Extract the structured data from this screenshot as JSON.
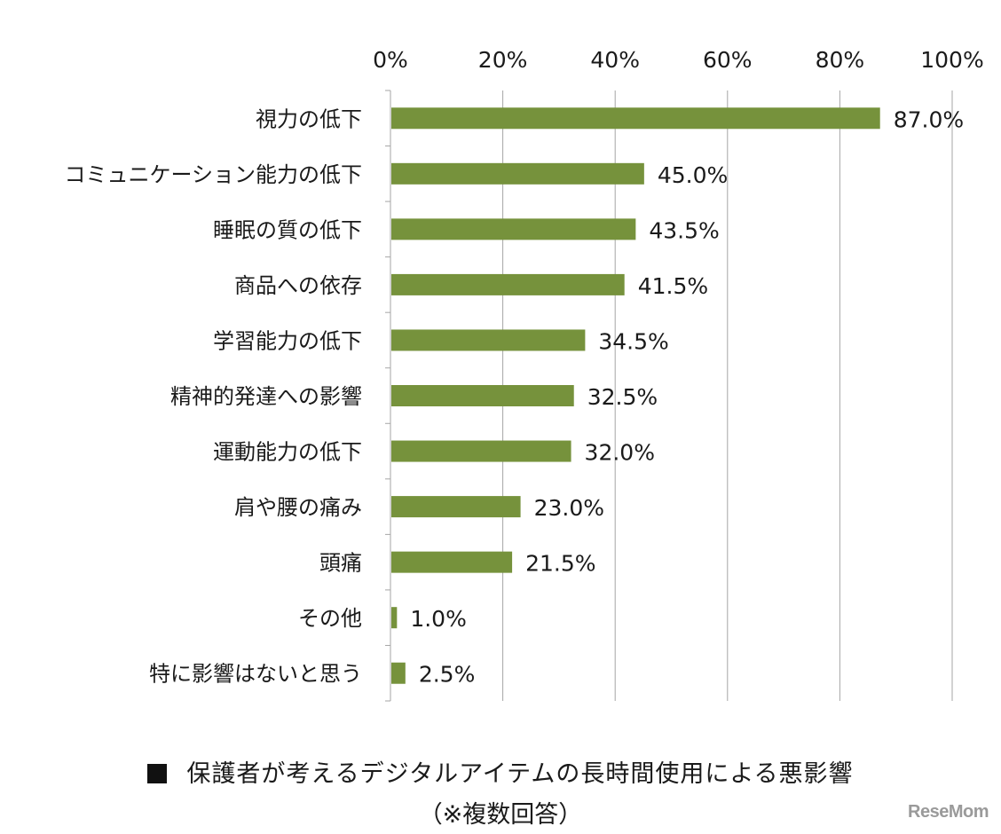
{
  "chart_data": {
    "type": "bar",
    "orientation": "horizontal",
    "categories": [
      "視力の低下",
      "コミュニケーション能力の低下",
      "睡眠の質の低下",
      "商品への依存",
      "学習能力の低下",
      "精神的発達への影響",
      "運動能力の低下",
      "肩や腰の痛み",
      "頭痛",
      "その他",
      "特に影響はないと思う"
    ],
    "values": [
      87.0,
      45.0,
      43.5,
      41.5,
      34.5,
      32.5,
      32.0,
      23.0,
      21.5,
      1.0,
      2.5
    ],
    "value_labels": [
      "87.0%",
      "45.0%",
      "43.5%",
      "41.5%",
      "34.5%",
      "32.5%",
      "32.0%",
      "23.0%",
      "21.5%",
      "1.0%",
      "2.5%"
    ],
    "xlim": [
      0,
      100
    ],
    "x_ticks": [
      0,
      20,
      40,
      60,
      80,
      100
    ],
    "x_tick_labels": [
      "0%",
      "20%",
      "40%",
      "60%",
      "80%",
      "100%"
    ],
    "x_axis_position": "top",
    "grid": true,
    "bar_color": "#76923c",
    "grid_color": "#a6a6a6"
  },
  "caption": {
    "title": "保護者が考えるデジタルアイテムの長時間使用による悪影響",
    "subtitle": "（※複数回答）"
  },
  "watermark": "ReseMom"
}
